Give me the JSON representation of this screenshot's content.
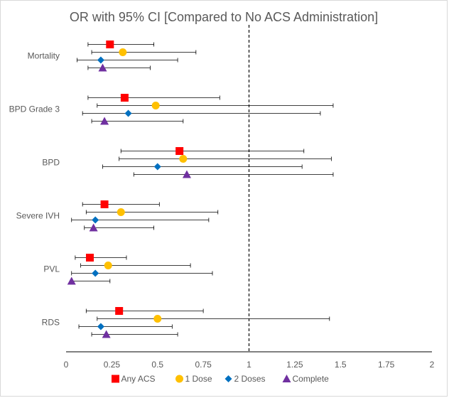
{
  "chart_data": {
    "type": "scatter",
    "subtype": "forest-plot",
    "title": "OR with 95% CI [Compared to No ACS Administration]",
    "categories": [
      "Mortality",
      "BPD Grade 3",
      "BPD",
      "Severe IVH",
      "PVL",
      "RDS"
    ],
    "xlim": [
      0,
      2
    ],
    "x_ticks": [
      "0",
      "0.25",
      "0.5",
      "0.75",
      "1",
      "1.25",
      "1.5",
      "1.75",
      "2"
    ],
    "reference_line": 1,
    "legend_position": "bottom",
    "series": [
      {
        "name": "Any ACS",
        "color": "#ff0000",
        "marker": "square",
        "values": [
          {
            "category": "Mortality",
            "or": 0.24,
            "lower": 0.12,
            "upper": 0.48
          },
          {
            "category": "BPD Grade 3",
            "or": 0.32,
            "lower": 0.12,
            "upper": 0.84
          },
          {
            "category": "BPD",
            "or": 0.62,
            "lower": 0.3,
            "upper": 1.3
          },
          {
            "category": "Severe IVH",
            "or": 0.21,
            "lower": 0.09,
            "upper": 0.51
          },
          {
            "category": "PVL",
            "or": 0.13,
            "lower": 0.05,
            "upper": 0.33
          },
          {
            "category": "RDS",
            "or": 0.29,
            "lower": 0.11,
            "upper": 0.75
          }
        ]
      },
      {
        "name": "1 Dose",
        "color": "#ffc000",
        "marker": "circle",
        "values": [
          {
            "category": "Mortality",
            "or": 0.31,
            "lower": 0.14,
            "upper": 0.71
          },
          {
            "category": "BPD Grade 3",
            "or": 0.49,
            "lower": 0.17,
            "upper": 1.46
          },
          {
            "category": "BPD",
            "or": 0.64,
            "lower": 0.29,
            "upper": 1.45
          },
          {
            "category": "Severe IVH",
            "or": 0.3,
            "lower": 0.11,
            "upper": 0.83
          },
          {
            "category": "PVL",
            "or": 0.23,
            "lower": 0.08,
            "upper": 0.68
          },
          {
            "category": "RDS",
            "or": 0.5,
            "lower": 0.17,
            "upper": 1.44
          }
        ]
      },
      {
        "name": "2 Doses",
        "color": "#0070c0",
        "marker": "diamond",
        "values": [
          {
            "category": "Mortality",
            "or": 0.19,
            "lower": 0.06,
            "upper": 0.61
          },
          {
            "category": "BPD Grade 3",
            "or": 0.34,
            "lower": 0.09,
            "upper": 1.39
          },
          {
            "category": "BPD",
            "or": 0.5,
            "lower": 0.2,
            "upper": 1.29
          },
          {
            "category": "Severe IVH",
            "or": 0.16,
            "lower": 0.03,
            "upper": 0.78
          },
          {
            "category": "PVL",
            "or": 0.16,
            "lower": 0.03,
            "upper": 0.8
          },
          {
            "category": "RDS",
            "or": 0.19,
            "lower": 0.07,
            "upper": 0.58
          }
        ]
      },
      {
        "name": "Complete",
        "color": "#7030a0",
        "marker": "triangle",
        "values": [
          {
            "category": "Mortality",
            "or": 0.2,
            "lower": 0.12,
            "upper": 0.46
          },
          {
            "category": "BPD Grade 3",
            "or": 0.21,
            "lower": 0.14,
            "upper": 0.64
          },
          {
            "category": "BPD",
            "or": 0.66,
            "lower": 0.37,
            "upper": 1.46
          },
          {
            "category": "Severe IVH",
            "or": 0.15,
            "lower": 0.1,
            "upper": 0.48
          },
          {
            "category": "PVL",
            "or": 0.03,
            "lower": 0.03,
            "upper": 0.24
          },
          {
            "category": "RDS",
            "or": 0.22,
            "lower": 0.14,
            "upper": 0.61
          }
        ]
      }
    ]
  }
}
